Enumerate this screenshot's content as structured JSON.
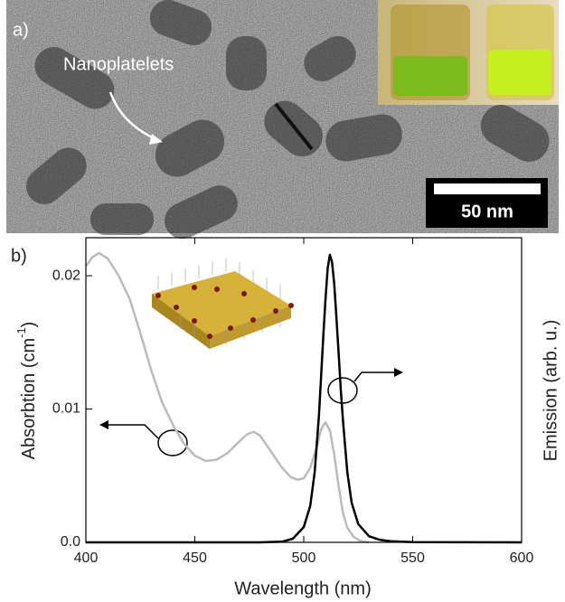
{
  "panel_a": {
    "label": "a)",
    "annotation": "Nanoplatelets",
    "scale_bar": "50 nm"
  },
  "chart_data": {
    "type": "line",
    "panel_label": "b)",
    "xlabel": "Wavelength (nm)",
    "ylabel": [
      "Absorbtion (cm",
      "-1",
      ")"
    ],
    "y2label": "Emission (arb. u.)",
    "xlim": [
      400,
      600
    ],
    "xticks": [
      400,
      450,
      500,
      550,
      600
    ],
    "ylim": [
      0,
      0.02285
    ],
    "yticks": [
      {
        "value": 0,
        "label": "0.0"
      },
      0.01,
      0.02
    ],
    "y2lim": [
      0,
      1
    ],
    "series": [
      {
        "color": "#bbbbbb",
        "x": [
          400,
          403,
          406,
          410,
          415,
          420,
          425,
          430,
          435,
          440,
          445,
          450,
          455,
          460,
          465,
          470,
          474,
          477,
          480,
          485,
          490,
          494,
          497,
          500,
          503,
          506,
          508,
          510,
          512,
          514,
          516,
          518,
          520,
          523,
          526,
          530
        ],
        "values": [
          0.0207,
          0.0214,
          0.0217,
          0.0213,
          0.02,
          0.0183,
          0.0157,
          0.0129,
          0.0105,
          0.0088,
          0.0074,
          0.0065,
          0.0061,
          0.0062,
          0.0067,
          0.0075,
          0.0081,
          0.0083,
          0.008,
          0.0068,
          0.0056,
          0.0049,
          0.0047,
          0.0048,
          0.0056,
          0.0072,
          0.0085,
          0.009,
          0.0084,
          0.0066,
          0.0042,
          0.0022,
          0.0011,
          0.0004,
          0.0001,
          0
        ]
      },
      {
        "color": "#000000",
        "axis": "y2",
        "x": [
          400,
          450,
          480,
          490,
          495,
          500,
          503,
          505,
          507,
          508,
          509,
          510,
          511,
          512,
          513,
          514,
          515,
          516,
          517,
          518,
          520,
          522,
          525,
          530,
          535,
          540,
          550,
          600
        ],
        "values": [
          0,
          0,
          0,
          0.002,
          0.012,
          0.05,
          0.12,
          0.23,
          0.42,
          0.55,
          0.68,
          0.8,
          0.9,
          0.944,
          0.92,
          0.85,
          0.74,
          0.62,
          0.5,
          0.4,
          0.23,
          0.13,
          0.06,
          0.02,
          0.008,
          0.004,
          0.001,
          0
        ]
      }
    ]
  }
}
